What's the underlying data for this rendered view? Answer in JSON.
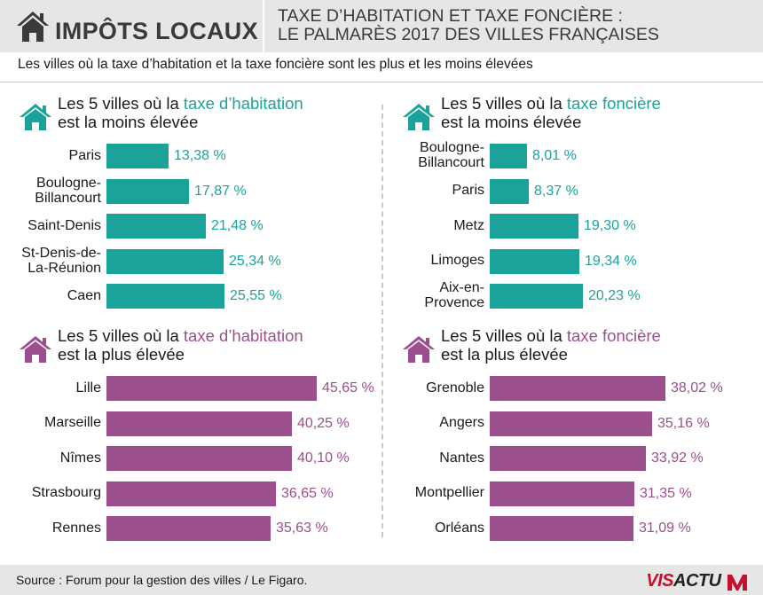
{
  "header": {
    "brand": "IMPÔTS LOCAUX",
    "subtitle_line1": "TAXE D’HABITATION ET TAXE FONCIÈRE :",
    "subtitle_line2": "LE PALMARÈS 2017 DES VILLES FRANÇAISES"
  },
  "intro": "Les villes où la taxe d’habitation et la taxe foncière sont les plus et les moins élevées",
  "colors": {
    "teal": "#1aa39a",
    "purple": "#9b4f8d",
    "header_bg": "#e6e6e6"
  },
  "chart_data": [
    {
      "type": "bar",
      "title_prefix": "Les 5 villes où la ",
      "title_highlight": "taxe d’habitation",
      "title_suffix": "est la moins élevée",
      "color": "#1aa39a",
      "categories": [
        [
          "Paris"
        ],
        [
          "Boulogne-",
          "Billancourt"
        ],
        [
          "Saint-Denis"
        ],
        [
          "St-Denis-de-",
          "La-Réunion"
        ],
        [
          "Caen"
        ]
      ],
      "values": [
        13.38,
        17.87,
        21.48,
        25.34,
        25.55
      ],
      "labels": [
        "13,38 %",
        "17,87 %",
        "21,48 %",
        "25,34 %",
        "25,55 %"
      ],
      "unit": "%"
    },
    {
      "type": "bar",
      "title_prefix": "Les 5 villes où la ",
      "title_highlight": "taxe foncière",
      "title_suffix": "est la moins élevée",
      "color": "#1aa39a",
      "categories": [
        [
          "Boulogne-",
          "Billancourt"
        ],
        [
          "Paris"
        ],
        [
          "Metz"
        ],
        [
          "Limoges"
        ],
        [
          "Aix-en-",
          "Provence"
        ]
      ],
      "values": [
        8.01,
        8.37,
        19.3,
        19.34,
        20.23
      ],
      "labels": [
        "8,01 %",
        "8,37 %",
        "19,30 %",
        "19,34 %",
        "20,23 %"
      ],
      "unit": "%"
    },
    {
      "type": "bar",
      "title_prefix": "Les 5 villes où la ",
      "title_highlight": "taxe d’habitation",
      "title_suffix": "est la plus élevée",
      "color": "#9b4f8d",
      "categories": [
        [
          "Lille"
        ],
        [
          "Marseille"
        ],
        [
          "Nîmes"
        ],
        [
          "Strasbourg"
        ],
        [
          "Rennes"
        ]
      ],
      "values": [
        45.65,
        40.25,
        40.1,
        36.65,
        35.63
      ],
      "labels": [
        "45,65 %",
        "40,25 %",
        "40,10 %",
        "36,65 %",
        "35,63 %"
      ],
      "unit": "%"
    },
    {
      "type": "bar",
      "title_prefix": "Les 5 villes où la ",
      "title_highlight": "taxe foncière",
      "title_suffix": "est la plus élevée",
      "color": "#9b4f8d",
      "categories": [
        [
          "Grenoble"
        ],
        [
          "Angers"
        ],
        [
          "Nantes"
        ],
        [
          "Montpellier"
        ],
        [
          "Orléans"
        ]
      ],
      "values": [
        38.02,
        35.16,
        33.92,
        31.35,
        31.09
      ],
      "labels": [
        "38,02 %",
        "35,16 %",
        "33,92 %",
        "31,35 %",
        "31,09 %"
      ],
      "unit": "%"
    }
  ],
  "footer": {
    "source": "Source : Forum pour la gestion des villes / Le Figaro.",
    "logo_vis": "VIS",
    "logo_actu": "ACTU"
  }
}
